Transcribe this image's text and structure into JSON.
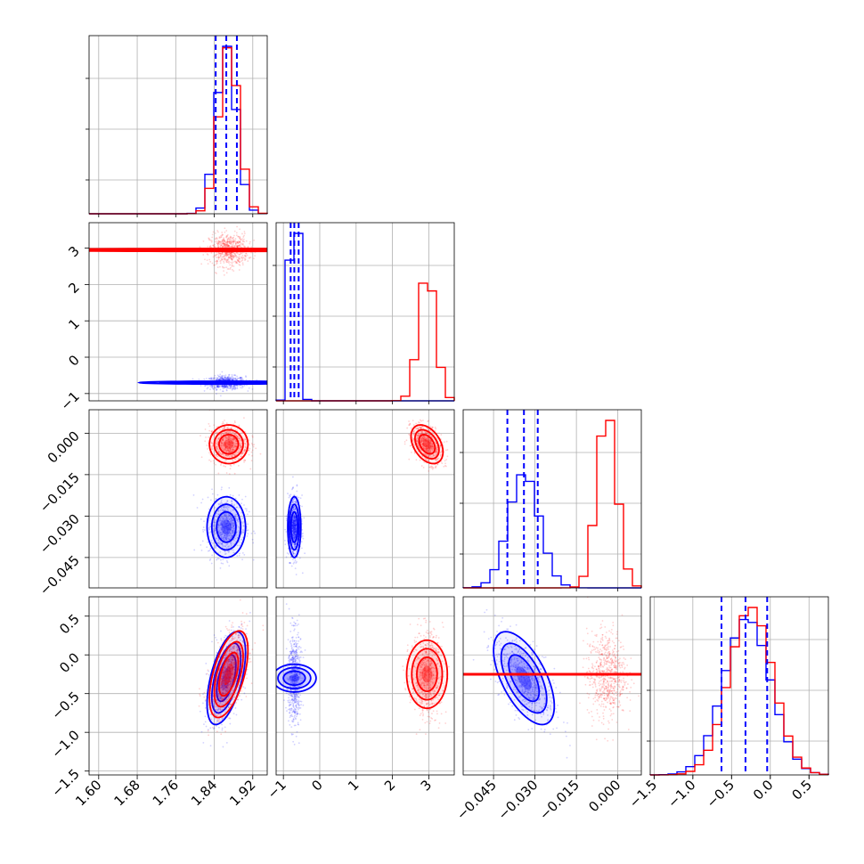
{
  "figure": {
    "type": "corner-plot",
    "n_params": 4,
    "grid": true
  },
  "colors": {
    "blue": "#0000ff",
    "red": "#ff0000",
    "grid": "#b0b0b0",
    "frame": "#000000"
  },
  "chart_data": {
    "type": "corner",
    "params": [
      {
        "range": [
          1.58,
          1.95
        ],
        "ticks": [
          "1.60",
          "1.68",
          "1.76",
          "1.84",
          "1.92"
        ],
        "tick_values": [
          1.6,
          1.68,
          1.76,
          1.84,
          1.92
        ]
      },
      {
        "range": [
          -1.2,
          3.7
        ],
        "ticks": [
          "−1",
          "0",
          "1",
          "2",
          "3"
        ],
        "tick_values": [
          -1,
          0,
          1,
          2,
          3
        ]
      },
      {
        "range": [
          -0.056,
          0.0085
        ],
        "ticks": [
          "−0.045",
          "−0.030",
          "−0.015",
          "0.000"
        ],
        "tick_values": [
          -0.045,
          -0.03,
          -0.015,
          0.0
        ]
      },
      {
        "range": [
          -1.55,
          0.75
        ],
        "ticks": [
          "−1.5",
          "−1.0",
          "−0.5",
          "0.0",
          "0.5"
        ],
        "tick_values": [
          -1.5,
          -1.0,
          -0.5,
          0.0,
          0.5
        ]
      }
    ],
    "series": [
      {
        "color": "#0000ff",
        "means": [
          1.865,
          -0.7,
          -0.034,
          -0.3
        ],
        "sds": [
          0.02,
          0.09,
          0.0055,
          0.3
        ],
        "quantiles": [
          [
            1.843,
            1.865,
            1.887
          ],
          [
            -0.8,
            -0.7,
            -0.58
          ],
          [
            -0.04,
            -0.034,
            -0.029
          ],
          [
            -0.63,
            -0.32,
            -0.04
          ]
        ],
        "correlations": {
          "0-3": 0.55,
          "2-3": -0.6
        }
      },
      {
        "color": "#ff0000",
        "means": [
          1.87,
          2.95,
          -0.004,
          -0.25
        ],
        "sds": [
          0.02,
          0.22,
          0.0035,
          0.28
        ],
        "correlations": {
          "0-3": 0.55,
          "1-2": -0.4
        }
      }
    ]
  }
}
